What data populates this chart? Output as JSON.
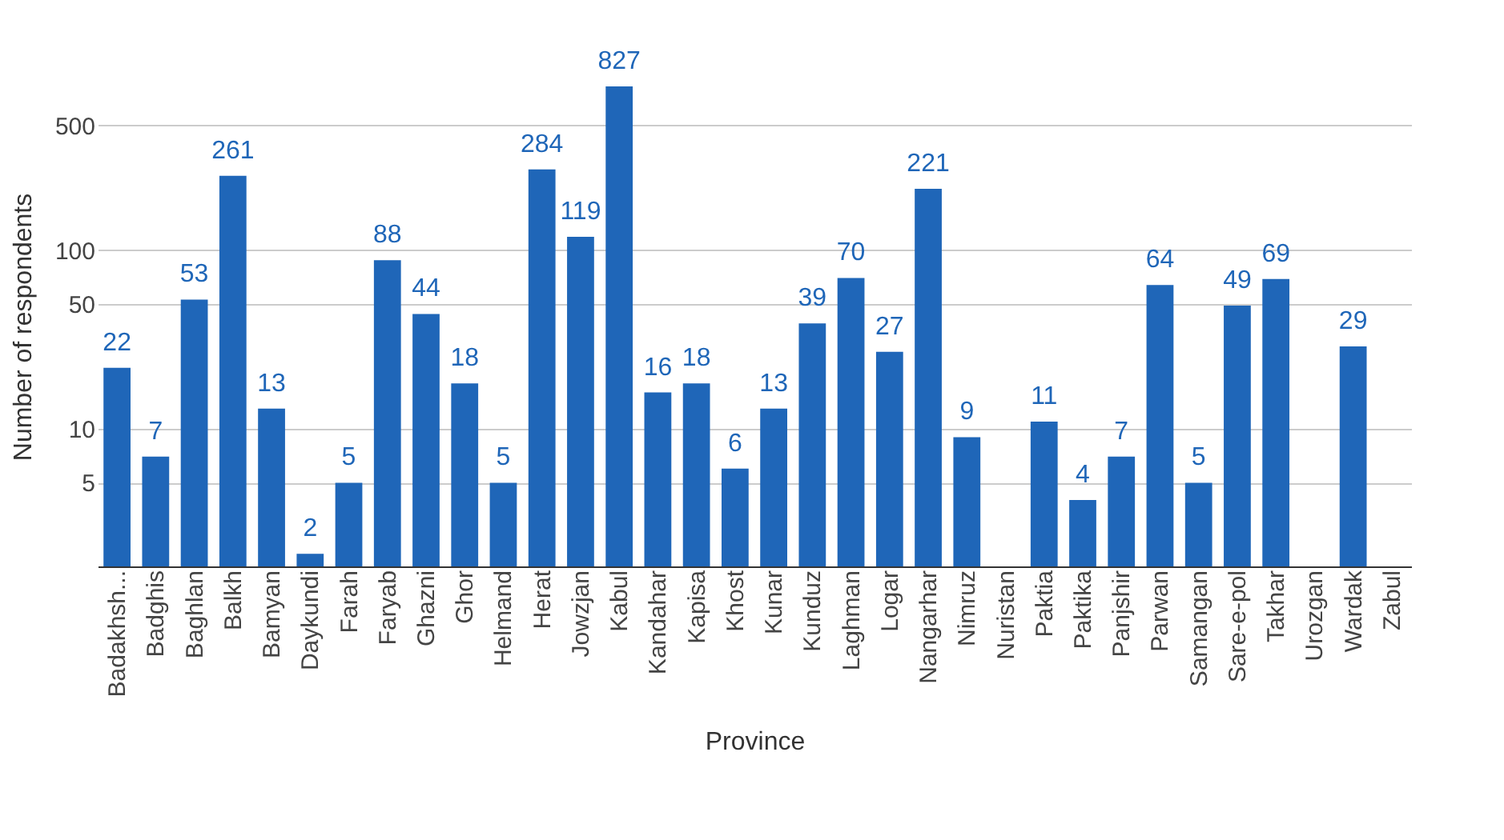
{
  "chart_data": {
    "type": "bar",
    "xlabel": "Province",
    "ylabel": "Number of respondents",
    "categories": [
      "Badakhsh...",
      "Badghis",
      "Baghlan",
      "Balkh",
      "Bamyan",
      "Daykundi",
      "Farah",
      "Faryab",
      "Ghazni",
      "Ghor",
      "Helmand",
      "Herat",
      "Jowzjan",
      "Kabul",
      "Kandahar",
      "Kapisa",
      "Khost",
      "Kunar",
      "Kunduz",
      "Laghman",
      "Logar",
      "Nangarhar",
      "Nimruz",
      "Nuristan",
      "Paktia",
      "Paktika",
      "Panjshir",
      "Parwan",
      "Samangan",
      "Sare-e-pol",
      "Takhar",
      "Urozgan",
      "Wardak",
      "Zabul"
    ],
    "values": [
      22,
      7,
      53,
      261,
      13,
      2,
      5,
      88,
      44,
      18,
      5,
      284,
      119,
      827,
      16,
      18,
      6,
      13,
      39,
      70,
      27,
      221,
      9,
      null,
      11,
      4,
      7,
      64,
      5,
      49,
      69,
      null,
      29,
      null
    ],
    "color": "#1f66b8",
    "log": true,
    "ylim": [
      1.7,
      827
    ],
    "yticks": [
      5,
      10,
      50,
      100,
      500
    ],
    "grid": "y",
    "data_labels": true
  }
}
